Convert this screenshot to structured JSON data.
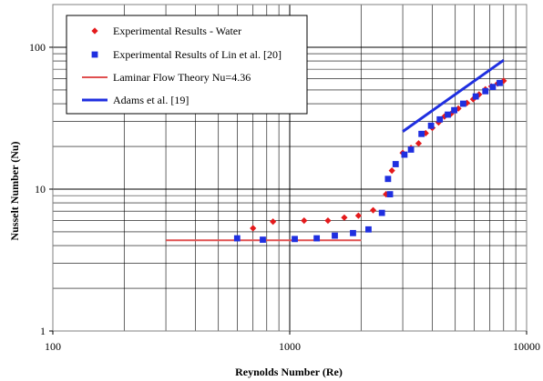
{
  "chart_data": {
    "type": "scatter",
    "title": "",
    "xlabel": "Reynolds Number (Re)",
    "ylabel": "Nusselt Number (Nu)",
    "x_scale": "log",
    "y_scale": "log",
    "xlim": [
      100,
      10000
    ],
    "ylim": [
      1,
      200
    ],
    "grid": true,
    "legend_position": "top-left",
    "x_ticks": [
      {
        "value": 100,
        "label": "100"
      },
      {
        "value": 1000,
        "label": "1000"
      },
      {
        "value": 10000,
        "label": "10000"
      }
    ],
    "y_ticks": [
      {
        "value": 1,
        "label": "1"
      },
      {
        "value": 10,
        "label": "10"
      },
      {
        "value": 100,
        "label": "100"
      }
    ],
    "series": [
      {
        "name": "Experimental Results - Water",
        "kind": "scatter",
        "marker": "diamond",
        "color": "#e41a1c",
        "points": [
          [
            700,
            5.3
          ],
          [
            850,
            5.9
          ],
          [
            1150,
            6.0
          ],
          [
            1450,
            6.0
          ],
          [
            1700,
            6.3
          ],
          [
            1950,
            6.5
          ],
          [
            2250,
            7.1
          ],
          [
            2550,
            9.2
          ],
          [
            2700,
            13.5
          ],
          [
            3000,
            18.0
          ],
          [
            3250,
            19.5
          ],
          [
            3500,
            21.0
          ],
          [
            3750,
            24.8
          ],
          [
            4000,
            27.0
          ],
          [
            4250,
            29.5
          ],
          [
            4500,
            32.5
          ],
          [
            4800,
            34.0
          ],
          [
            5150,
            37.0
          ],
          [
            5600,
            40.5
          ],
          [
            5950,
            43.0
          ],
          [
            6300,
            46.5
          ],
          [
            6700,
            50.5
          ],
          [
            7100,
            53.0
          ],
          [
            7550,
            55.5
          ],
          [
            8000,
            58.0
          ]
        ]
      },
      {
        "name": "Experimental Results of Lin et al. [20]",
        "kind": "scatter",
        "marker": "square",
        "color": "#1f2fe0",
        "points": [
          [
            600,
            4.5
          ],
          [
            770,
            4.4
          ],
          [
            1050,
            4.45
          ],
          [
            1300,
            4.5
          ],
          [
            1550,
            4.7
          ],
          [
            1850,
            4.9
          ],
          [
            2150,
            5.2
          ],
          [
            2450,
            6.8
          ],
          [
            2600,
            11.8
          ],
          [
            2650,
            9.2
          ],
          [
            2800,
            15.0
          ],
          [
            3050,
            17.5
          ],
          [
            3250,
            19.0
          ],
          [
            3600,
            24.5
          ],
          [
            3950,
            28.0
          ],
          [
            4300,
            31.0
          ],
          [
            4650,
            33.5
          ],
          [
            4950,
            36.0
          ],
          [
            5400,
            40.0
          ],
          [
            6100,
            45.0
          ],
          [
            6700,
            49.0
          ],
          [
            7200,
            52.5
          ],
          [
            7700,
            56.0
          ]
        ]
      },
      {
        "name": "Laminar Flow Theory Nu=4.36",
        "kind": "line",
        "color": "#e05050",
        "width": 2,
        "points": [
          [
            300,
            4.36
          ],
          [
            2000,
            4.36
          ]
        ]
      },
      {
        "name": "Adams et al. [19]",
        "kind": "line",
        "color": "#1f2fe0",
        "width": 3,
        "points": [
          [
            3000,
            25.5
          ],
          [
            8000,
            81.0
          ]
        ]
      }
    ]
  }
}
